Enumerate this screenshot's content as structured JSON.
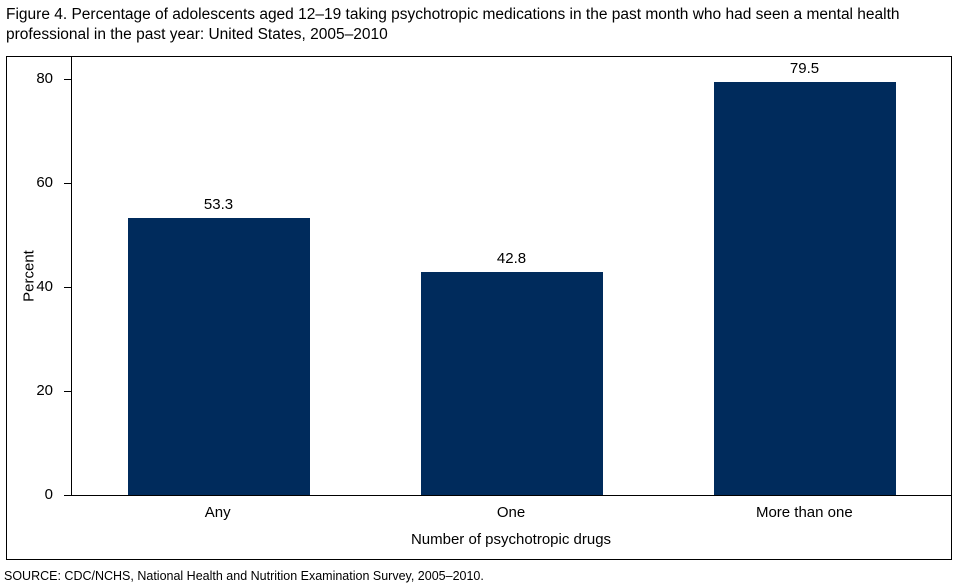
{
  "source": "SOURCE: CDC/NCHS, National Health and Nutrition Examination Survey, 2005–2010.",
  "chart_data": {
    "type": "bar",
    "title": "Figure 4. Percentage of adolescents aged 12–19 taking psychotropic medications in the past month who had seen a mental health professional in the past year: United States, 2005–2010",
    "categories": [
      "Any",
      "One",
      "More than one"
    ],
    "values": [
      53.3,
      42.8,
      79.5
    ],
    "value_labels": [
      "53.3",
      "42.8",
      "79.5"
    ],
    "xlabel": "Number of psychotropic drugs",
    "ylabel": "Percent",
    "ylim": [
      0,
      80
    ],
    "yticks": [
      0,
      20,
      40,
      60,
      80
    ],
    "bar_color": "#002b5c",
    "grid": false,
    "legend": "none"
  }
}
